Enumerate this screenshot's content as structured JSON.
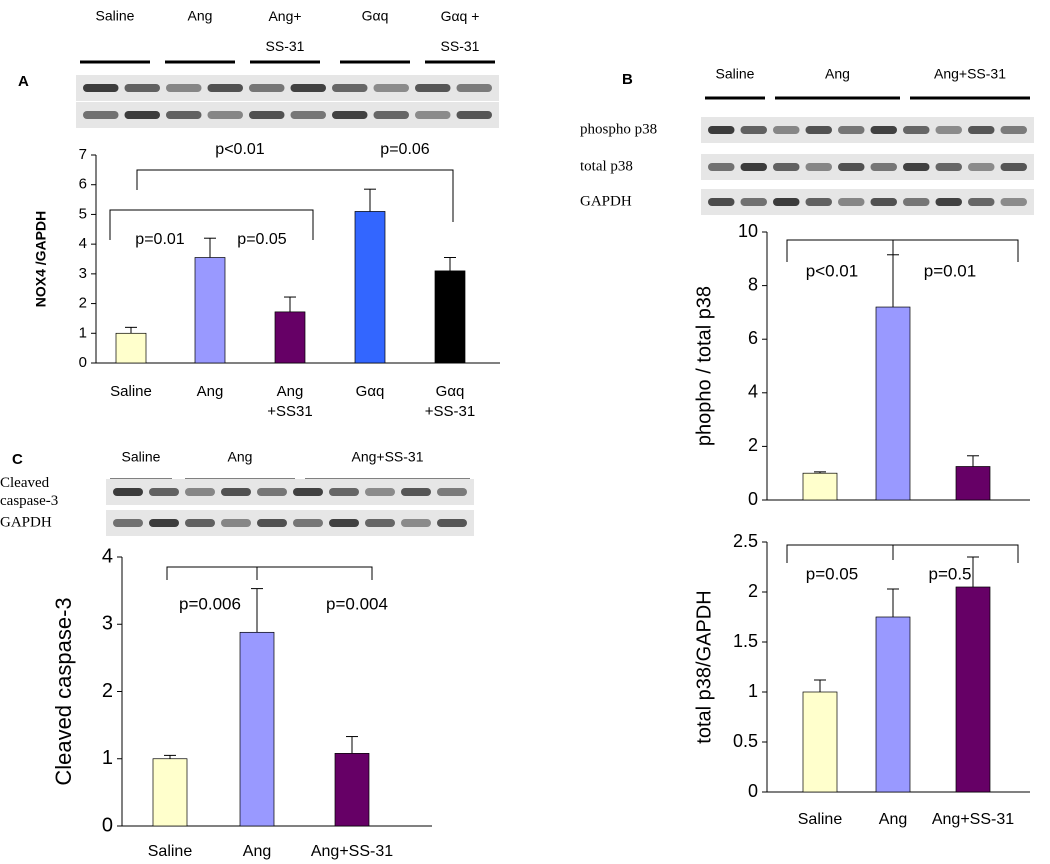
{
  "chart_data": [
    {
      "type": "bar",
      "panel": "A",
      "ylabel": "NOX4 /GAPDH",
      "categories": [
        "Saline",
        "Ang",
        "Ang\n+SS31",
        "Gαq",
        "Gαq\n+SS-31"
      ],
      "values": [
        1.0,
        3.55,
        1.72,
        5.1,
        3.1
      ],
      "errors": [
        0.2,
        0.65,
        0.5,
        0.75,
        0.45
      ],
      "colors": [
        "#ffffcc",
        "#9999ff",
        "#660066",
        "#3366ff",
        "#000000"
      ],
      "ylim": [
        0,
        7
      ],
      "yticks": [
        0,
        1,
        2,
        3,
        4,
        5,
        6,
        7
      ],
      "annotations": [
        "p=0.01",
        "p=0.05",
        "p<0.01",
        "p=0.06"
      ],
      "blot_lanes": [
        "Saline",
        "Ang",
        "Ang+\nSS-31",
        "Gαq",
        "Gαq +\nSS-31"
      ]
    },
    {
      "type": "bar",
      "panel": "B",
      "ylabel": "phopho / total p38",
      "values": [
        1.0,
        7.2,
        1.25
      ],
      "errors": [
        0.05,
        1.95,
        0.4
      ],
      "colors": [
        "#ffffcc",
        "#9999ff",
        "#660066"
      ],
      "ylim": [
        0,
        10
      ],
      "yticks": [
        0,
        2,
        4,
        6,
        8,
        10
      ],
      "annotations": [
        "p<0.01",
        "p=0.01"
      ],
      "blot_lanes": [
        "Saline",
        "Ang",
        "Ang+SS-31"
      ],
      "blot_rows": [
        "phospho p38",
        "total p38",
        "GAPDH"
      ]
    },
    {
      "type": "bar",
      "ylabel": "total p38/GAPDH",
      "categories": [
        "Saline",
        "Ang",
        "Ang+SS-31"
      ],
      "values": [
        1.0,
        1.75,
        2.05
      ],
      "errors": [
        0.12,
        0.28,
        0.3
      ],
      "colors": [
        "#ffffcc",
        "#9999ff",
        "#660066"
      ],
      "ylim": [
        0,
        2.5
      ],
      "yticks": [
        0,
        0.5,
        1,
        1.5,
        2,
        2.5
      ],
      "annotations": [
        "p=0.05",
        "p=0.5"
      ]
    },
    {
      "type": "bar",
      "panel": "C",
      "ylabel": "Cleaved caspase-3",
      "categories": [
        "Saline",
        "Ang",
        "Ang+SS-31"
      ],
      "values": [
        1.0,
        2.88,
        1.08
      ],
      "errors": [
        0.05,
        0.65,
        0.25
      ],
      "colors": [
        "#ffffcc",
        "#9999ff",
        "#660066"
      ],
      "ylim": [
        0,
        4
      ],
      "yticks": [
        0,
        1,
        2,
        3,
        4
      ],
      "annotations": [
        "p=0.006",
        "p=0.004"
      ],
      "blot_lanes": [
        "Saline",
        "Ang",
        "Ang+SS-31"
      ],
      "blot_rows": [
        "Cleaved\ncaspase-3",
        "GAPDH"
      ]
    }
  ]
}
